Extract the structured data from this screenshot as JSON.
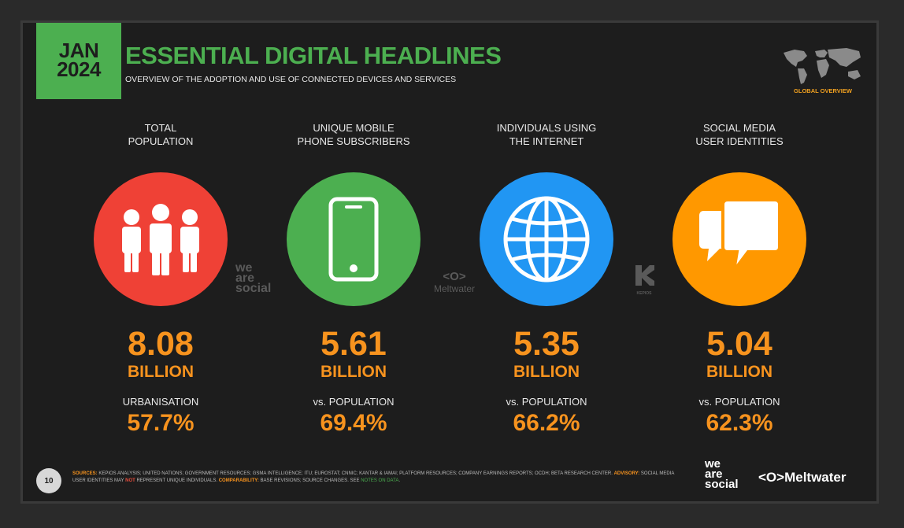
{
  "header": {
    "date_month": "JAN",
    "date_year": "2024",
    "title": "ESSENTIAL DIGITAL HEADLINES",
    "subtitle": "OVERVIEW OF THE ADOPTION AND USE OF CONNECTED DEVICES AND SERVICES",
    "map_label": "GLOBAL OVERVIEW"
  },
  "stats": [
    {
      "heading_line1": "TOTAL",
      "heading_line2": "POPULATION",
      "icon": "people-icon",
      "color": "#ef4136",
      "value": "8.08",
      "unit": "BILLION",
      "sub_label": "URBANISATION",
      "sub_value": "57.7%"
    },
    {
      "heading_line1": "UNIQUE MOBILE",
      "heading_line2": "PHONE SUBSCRIBERS",
      "icon": "mobile-phone-icon",
      "color": "#4caf50",
      "value": "5.61",
      "unit": "BILLION",
      "sub_label": "vs. POPULATION",
      "sub_value": "69.4%"
    },
    {
      "heading_line1": "INDIVIDUALS USING",
      "heading_line2": "THE INTERNET",
      "icon": "globe-icon",
      "color": "#2196f3",
      "value": "5.35",
      "unit": "BILLION",
      "sub_label": "vs. POPULATION",
      "sub_value": "66.2%"
    },
    {
      "heading_line1": "SOCIAL MEDIA",
      "heading_line2": "USER IDENTITIES",
      "icon": "chat-bubbles-icon",
      "color": "#ff9800",
      "value": "5.04",
      "unit": "BILLION",
      "sub_label": "vs. POPULATION",
      "sub_value": "62.3%"
    }
  ],
  "watermarks": {
    "wearesocial_1": "we",
    "wearesocial_2": "are",
    "wearesocial_3": "social",
    "meltwater_symbol": "<O>",
    "meltwater": "Meltwater",
    "kepios": "KEPIOS"
  },
  "footer": {
    "page_number": "10",
    "sources_label": "SOURCES:",
    "sources_text": " KEPIOS ANALYSIS; UNITED NATIONS; GOVERNMENT RESOURCES; GSMA INTELLIGENCE; ITU; EUROSTAT; CNNIC; KANTAR & IAMAI; PLATFORM RESOURCES; COMPANY EARNINGS REPORTS; OCDH; BETA RESEARCH CENTER. ",
    "advisory_label": "ADVISORY:",
    "advisory_text_1": " SOCIAL MEDIA USER IDENTITIES MAY ",
    "advisory_not": "NOT",
    "advisory_text_2": " REPRESENT UNIQUE INDIVIDUALS. ",
    "comparability_label": "COMPARABILITY:",
    "comparability_text": " BASE REVISIONS; SOURCE CHANGES. SEE ",
    "notes_link": "NOTES ON DATA",
    "notes_end": ".",
    "brand_we": "we",
    "brand_are": "are",
    "brand_social": "social",
    "brand_meltwater": "<O>Meltwater"
  }
}
